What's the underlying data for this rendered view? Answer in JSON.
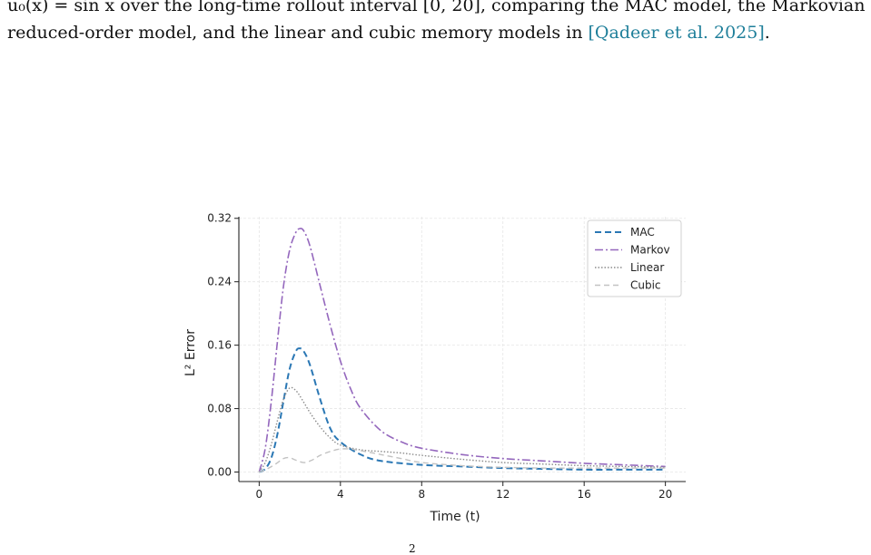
{
  "caption": {
    "line1": "u₀(x) = sin x over the long-time rollout interval [0, 20], comparing the MAC model, the Markovian",
    "line2_text": "reduced-order model, and the linear and cubic memory models in ",
    "line2_cite": "[Qadeer et al. 2025]",
    "line2_end": "."
  },
  "colors": {
    "mac": "#2a77b4",
    "markov": "#9467bd",
    "linear": "#8c8c8c",
    "cubic": "#c2c2c2",
    "citation": "#1f7f9a",
    "grid": "#e6e6e6"
  },
  "bottom_fragment": "2",
  "chart_data": {
    "type": "line",
    "xlabel": "Time (t)",
    "ylabel": "L² Error",
    "xlim": [
      -1,
      21
    ],
    "ylim": [
      -0.012,
      0.322
    ],
    "xticks": [
      0,
      4,
      8,
      12,
      16,
      20
    ],
    "yticks": [
      0.0,
      0.08,
      0.16,
      0.24,
      0.32
    ],
    "xtick_labels": [
      "0",
      "4",
      "8",
      "12",
      "16",
      "20"
    ],
    "ytick_labels": [
      "0.00",
      "0.08",
      "0.16",
      "0.24",
      "0.32"
    ],
    "grid": true,
    "legend_position": "top-right",
    "series": [
      {
        "name": "MAC",
        "style": "dashed",
        "x": [
          0,
          0.3,
          0.6,
          0.9,
          1.2,
          1.5,
          1.8,
          2.0,
          2.2,
          2.5,
          3.0,
          3.5,
          4.0,
          5.0,
          6.0,
          8.0,
          10.0,
          12.0,
          14.0,
          16.0,
          18.0,
          20.0
        ],
        "y": [
          0.0,
          0.004,
          0.018,
          0.048,
          0.09,
          0.13,
          0.152,
          0.156,
          0.152,
          0.135,
          0.092,
          0.055,
          0.038,
          0.022,
          0.014,
          0.009,
          0.007,
          0.005,
          0.004,
          0.003,
          0.003,
          0.003
        ]
      },
      {
        "name": "Markov",
        "style": "dashdot",
        "x": [
          0,
          0.3,
          0.6,
          0.9,
          1.2,
          1.5,
          1.8,
          2.0,
          2.2,
          2.5,
          3.0,
          3.5,
          4.0,
          4.5,
          5.0,
          6.0,
          7.0,
          8.0,
          10.0,
          12.0,
          14.0,
          16.0,
          18.0,
          20.0
        ],
        "y": [
          0.0,
          0.03,
          0.09,
          0.165,
          0.235,
          0.28,
          0.302,
          0.307,
          0.304,
          0.285,
          0.235,
          0.185,
          0.14,
          0.105,
          0.08,
          0.052,
          0.038,
          0.03,
          0.022,
          0.017,
          0.014,
          0.011,
          0.009,
          0.007
        ]
      },
      {
        "name": "Linear",
        "style": "dotted",
        "x": [
          0,
          0.3,
          0.6,
          0.9,
          1.2,
          1.5,
          1.8,
          2.1,
          2.5,
          3.0,
          3.5,
          4.0,
          5.0,
          6.0,
          7.0,
          8.0,
          10.0,
          12.0,
          14.0,
          16.0,
          18.0,
          20.0
        ],
        "y": [
          0.0,
          0.012,
          0.035,
          0.065,
          0.092,
          0.106,
          0.103,
          0.092,
          0.075,
          0.057,
          0.043,
          0.034,
          0.028,
          0.026,
          0.024,
          0.021,
          0.016,
          0.012,
          0.01,
          0.008,
          0.007,
          0.006
        ]
      },
      {
        "name": "Cubic",
        "style": "dashed-light",
        "x": [
          0,
          0.4,
          0.8,
          1.2,
          1.5,
          1.8,
          2.2,
          2.6,
          3.0,
          3.5,
          4.0,
          4.5,
          5.0,
          6.0,
          7.0,
          8.0,
          10.0,
          12.0,
          14.0,
          16.0,
          18.0,
          20.0
        ],
        "y": [
          0.0,
          0.004,
          0.01,
          0.017,
          0.018,
          0.015,
          0.012,
          0.015,
          0.021,
          0.026,
          0.029,
          0.029,
          0.027,
          0.022,
          0.017,
          0.012,
          0.008,
          0.006,
          0.005,
          0.005,
          0.005,
          0.005
        ]
      }
    ]
  }
}
